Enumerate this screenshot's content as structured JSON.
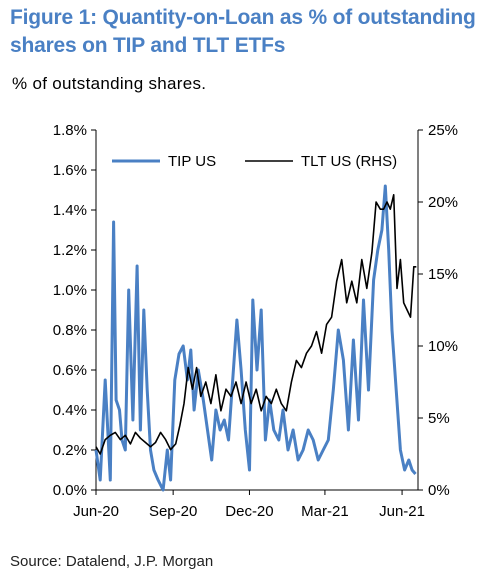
{
  "figure": {
    "title": "Figure 1:  Quantity-on-Loan as % of outstanding shares on TIP and TLT ETFs",
    "subtitle": "% of outstanding shares.",
    "source": "Source: Datalend, J.P. Morgan"
  },
  "colors": {
    "tip": "#4a80c4",
    "tlt": "#000000",
    "axis": "#000000"
  },
  "chart_data": {
    "type": "line",
    "title": "Figure 1:  Quantity-on-Loan as % of outstanding shares on TIP and TLT ETFs",
    "ylabel": "% of outstanding shares.",
    "x_ticks": [
      "Jun-20",
      "Sep-20",
      "Dec-20",
      "Mar-21",
      "Jun-21"
    ],
    "x_tick_dates": [
      "2020-06-01",
      "2020-09-01",
      "2020-12-01",
      "2021-03-01",
      "2021-06-01"
    ],
    "xlim": [
      "2020-06-01",
      "2021-06-20"
    ],
    "y_left": {
      "ylim": [
        0,
        1.8
      ],
      "ticks": [
        "0.0%",
        "0.2%",
        "0.4%",
        "0.6%",
        "0.8%",
        "1.0%",
        "1.2%",
        "1.4%",
        "1.6%",
        "1.8%"
      ]
    },
    "y_right": {
      "ylim": [
        0,
        25
      ],
      "ticks": [
        "0%",
        "5%",
        "10%",
        "15%",
        "20%",
        "25%"
      ]
    },
    "legend_position": "top",
    "series": [
      {
        "name": "TIP US",
        "axis": "left",
        "x": [
          "2020-06-01",
          "2020-06-06",
          "2020-06-12",
          "2020-06-18",
          "2020-06-22",
          "2020-06-25",
          "2020-06-29",
          "2020-07-02",
          "2020-07-06",
          "2020-07-10",
          "2020-07-15",
          "2020-07-20",
          "2020-07-24",
          "2020-07-28",
          "2020-08-01",
          "2020-08-05",
          "2020-08-09",
          "2020-08-14",
          "2020-08-20",
          "2020-08-25",
          "2020-08-29",
          "2020-09-03",
          "2020-09-08",
          "2020-09-13",
          "2020-09-18",
          "2020-09-22",
          "2020-09-26",
          "2020-10-01",
          "2020-10-07",
          "2020-10-12",
          "2020-10-17",
          "2020-10-22",
          "2020-10-27",
          "2020-11-01",
          "2020-11-06",
          "2020-11-11",
          "2020-11-16",
          "2020-11-21",
          "2020-11-26",
          "2020-12-01",
          "2020-12-05",
          "2020-12-10",
          "2020-12-15",
          "2020-12-20",
          "2020-12-25",
          "2020-12-30",
          "2021-01-05",
          "2021-01-10",
          "2021-01-16",
          "2021-01-22",
          "2021-01-28",
          "2021-02-03",
          "2021-02-09",
          "2021-02-15",
          "2021-02-21",
          "2021-02-27",
          "2021-03-05",
          "2021-03-11",
          "2021-03-17",
          "2021-03-23",
          "2021-03-29",
          "2021-04-04",
          "2021-04-10",
          "2021-04-16",
          "2021-04-22",
          "2021-04-28",
          "2021-05-03",
          "2021-05-08",
          "2021-05-12",
          "2021-05-16",
          "2021-05-20",
          "2021-05-25",
          "2021-05-30",
          "2021-06-04",
          "2021-06-09",
          "2021-06-13",
          "2021-06-17"
        ],
        "y": [
          0.2,
          0.05,
          0.55,
          0.05,
          1.34,
          0.45,
          0.4,
          0.25,
          0.2,
          1.0,
          0.35,
          1.12,
          0.3,
          0.9,
          0.5,
          0.2,
          0.1,
          0.05,
          0.0,
          0.2,
          0.05,
          0.55,
          0.68,
          0.72,
          0.55,
          0.7,
          0.4,
          0.6,
          0.45,
          0.3,
          0.15,
          0.4,
          0.3,
          0.35,
          0.25,
          0.55,
          0.85,
          0.6,
          0.3,
          0.1,
          0.95,
          0.6,
          0.9,
          0.25,
          0.45,
          0.3,
          0.25,
          0.4,
          0.2,
          0.3,
          0.15,
          0.2,
          0.3,
          0.25,
          0.15,
          0.2,
          0.25,
          0.5,
          0.8,
          0.65,
          0.3,
          0.75,
          0.35,
          0.95,
          0.5,
          1.05,
          1.2,
          1.3,
          1.52,
          1.2,
          0.8,
          0.5,
          0.2,
          0.1,
          0.15,
          0.1,
          0.08
        ]
      },
      {
        "name": "TLT US (RHS)",
        "axis": "right",
        "x": [
          "2020-06-01",
          "2020-06-06",
          "2020-06-12",
          "2020-06-18",
          "2020-06-24",
          "2020-06-30",
          "2020-07-06",
          "2020-07-12",
          "2020-07-18",
          "2020-07-24",
          "2020-07-30",
          "2020-08-05",
          "2020-08-11",
          "2020-08-17",
          "2020-08-23",
          "2020-08-29",
          "2020-09-04",
          "2020-09-09",
          "2020-09-14",
          "2020-09-19",
          "2020-09-24",
          "2020-09-29",
          "2020-10-04",
          "2020-10-10",
          "2020-10-16",
          "2020-10-22",
          "2020-10-28",
          "2020-11-03",
          "2020-11-09",
          "2020-11-15",
          "2020-11-21",
          "2020-11-27",
          "2020-12-03",
          "2020-12-09",
          "2020-12-15",
          "2020-12-21",
          "2020-12-27",
          "2021-01-02",
          "2021-01-08",
          "2021-01-14",
          "2021-01-20",
          "2021-01-26",
          "2021-02-01",
          "2021-02-07",
          "2021-02-13",
          "2021-02-19",
          "2021-02-25",
          "2021-03-03",
          "2021-03-09",
          "2021-03-15",
          "2021-03-21",
          "2021-03-27",
          "2021-04-02",
          "2021-04-08",
          "2021-04-14",
          "2021-04-20",
          "2021-04-26",
          "2021-05-01",
          "2021-05-06",
          "2021-05-10",
          "2021-05-14",
          "2021-05-18",
          "2021-05-22",
          "2021-05-26",
          "2021-05-30",
          "2021-06-03",
          "2021-06-07",
          "2021-06-11",
          "2021-06-15",
          "2021-06-18"
        ],
        "y": [
          3.0,
          2.5,
          3.5,
          3.8,
          4.0,
          3.5,
          3.8,
          3.2,
          4.0,
          3.6,
          3.3,
          3.0,
          3.3,
          4.0,
          3.5,
          2.8,
          3.2,
          4.5,
          6.0,
          8.5,
          7.0,
          8.5,
          6.5,
          7.5,
          6.0,
          8.0,
          5.5,
          7.0,
          6.5,
          7.5,
          6.0,
          7.5,
          6.0,
          7.0,
          5.5,
          6.5,
          6.0,
          7.0,
          6.0,
          5.5,
          7.5,
          9.0,
          8.5,
          9.5,
          10.0,
          11.0,
          9.5,
          11.5,
          12.0,
          14.5,
          16.0,
          13.0,
          14.5,
          13.0,
          16.0,
          14.0,
          16.5,
          20.0,
          19.5,
          19.5,
          20.0,
          19.5,
          20.5,
          14.0,
          16.0,
          13.0,
          12.5,
          12.0,
          15.5,
          15.5
        ]
      }
    ]
  }
}
